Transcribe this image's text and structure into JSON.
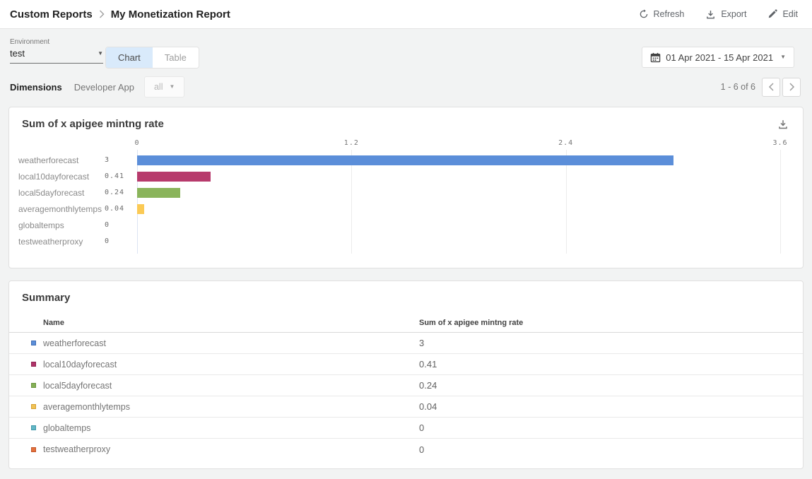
{
  "header": {
    "breadcrumb": {
      "parent": "Custom Reports",
      "current": "My Monetization Report"
    },
    "actions": {
      "refresh": "Refresh",
      "export": "Export",
      "edit": "Edit"
    }
  },
  "toolbar": {
    "environment": {
      "label": "Environment",
      "value": "test"
    },
    "view_tabs": [
      {
        "label": "Chart",
        "active": true
      },
      {
        "label": "Table",
        "active": false
      }
    ],
    "date_range": "01 Apr 2021 - 15 Apr 2021"
  },
  "dimensions": {
    "label": "Dimensions",
    "dimension_name": "Developer App",
    "filter_value": "all",
    "pagination": "1 - 6 of 6"
  },
  "chart_data": {
    "type": "bar",
    "orientation": "horizontal",
    "title": "Sum of x apigee mintng rate",
    "categories": [
      "weatherforecast",
      "local10dayforecast",
      "local5dayforecast",
      "averagemonthlytemps",
      "globaltemps",
      "testweatherproxy"
    ],
    "values": [
      3,
      0.41,
      0.24,
      0.04,
      0,
      0
    ],
    "value_labels": [
      "3",
      "0.41",
      "0.24",
      "0.04",
      "0",
      "0"
    ],
    "bar_colors": [
      "#5b8ed9",
      "#b73a6c",
      "#8ab45b",
      "#fbca55",
      "#62b7c6",
      "#e4713c"
    ],
    "x_ticks": [
      0,
      1.2,
      2.4,
      3.6
    ],
    "x_tick_labels": [
      "0",
      "1.2",
      "2.4",
      "3.6"
    ],
    "xlim": [
      0,
      3.6
    ],
    "grid": true,
    "legend": false,
    "gridline_color": "#ececec",
    "zero_line_color": "#dce4f2"
  },
  "summary": {
    "title": "Summary",
    "columns": [
      "Name",
      "Sum of x apigee mintng rate"
    ],
    "rows": [
      {
        "name": "weatherforecast",
        "value": "3",
        "color": "#5b8ed9",
        "border": "#3f6db3"
      },
      {
        "name": "local10dayforecast",
        "value": "0.41",
        "color": "#b03369",
        "border": "#8f2150"
      },
      {
        "name": "local5dayforecast",
        "value": "0.24",
        "color": "#85b055",
        "border": "#6a9440"
      },
      {
        "name": "averagemonthlytemps",
        "value": "0.04",
        "color": "#f0c254",
        "border": "#d6a031"
      },
      {
        "name": "globaltemps",
        "value": "0",
        "color": "#62b7c6",
        "border": "#3f97a8"
      },
      {
        "name": "testweatherproxy",
        "value": "0",
        "color": "#e4713c",
        "border": "#c2552a"
      }
    ]
  }
}
